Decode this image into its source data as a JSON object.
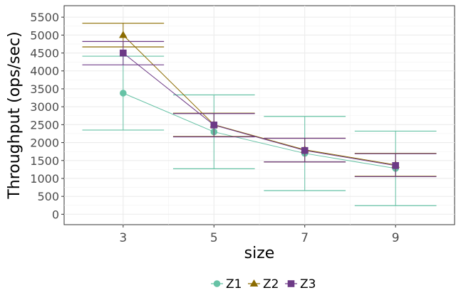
{
  "chart_data": {
    "type": "line",
    "title": "",
    "xlabel": "size",
    "ylabel": "Throughput (ops/sec)",
    "x": [
      3,
      5,
      7,
      9
    ],
    "x_ticks": [
      "3",
      "5",
      "7",
      "9"
    ],
    "xlim": [
      1.7,
      10.3
    ],
    "ylim": [
      -290,
      5820
    ],
    "y_ticks": [
      0,
      500,
      1000,
      1500,
      2000,
      2500,
      3000,
      3500,
      4000,
      4500,
      5000,
      5500
    ],
    "y_tick_labels": [
      "0",
      "500",
      "1000",
      "1500",
      "2000",
      "2500",
      "3000",
      "3500",
      "4000",
      "4500",
      "5000",
      "5500"
    ],
    "grid": true,
    "legend_position": "bottom",
    "series": [
      {
        "name": "Z1",
        "color": "#66c2a5",
        "marker": "circle",
        "values": [
          3380,
          2300,
          1700,
          1280
        ],
        "error_low": [
          2350,
          1270,
          660,
          240
        ],
        "error_high": [
          4410,
          3330,
          2730,
          2320
        ]
      },
      {
        "name": "Z2",
        "color": "#8b6b00",
        "marker": "triangle",
        "values": [
          5000,
          2500,
          1800,
          1380
        ],
        "error_low": [
          4670,
          2170,
          1460,
          1060
        ],
        "error_high": [
          5330,
          2820,
          2120,
          1700
        ]
      },
      {
        "name": "Z3",
        "color": "#6d3a86",
        "marker": "square",
        "values": [
          4500,
          2490,
          1780,
          1360
        ],
        "error_low": [
          4170,
          2160,
          1460,
          1050
        ],
        "error_high": [
          4820,
          2810,
          2120,
          1690
        ]
      }
    ]
  }
}
